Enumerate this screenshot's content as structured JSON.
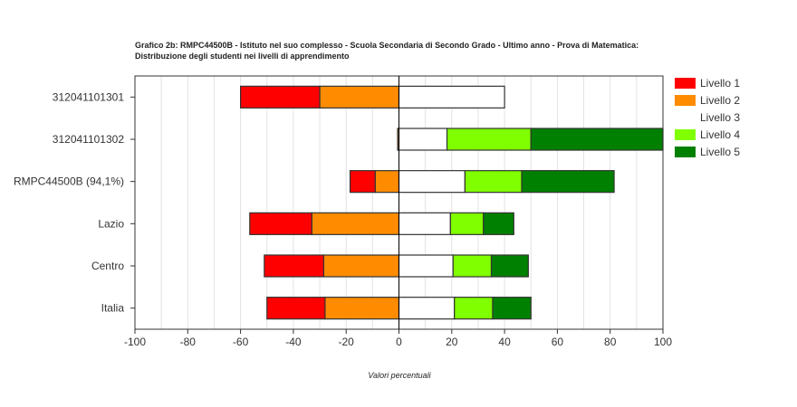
{
  "chart_data": {
    "type": "bar",
    "orientation": "horizontal",
    "stacked": "diverging",
    "title_line1": "Grafico 2b: RMPC44500B - Istituto nel suo complesso - Scuola Secondaria di Secondo Grado - Ultimo anno - Prova di Matematica:",
    "title_line2": "Distribuzione degli studenti nei livelli di apprendimento",
    "xlabel": "Valori percentuali",
    "xlim": [
      -100,
      100
    ],
    "xticks": [
      -100,
      -80,
      -60,
      -40,
      -20,
      0,
      20,
      40,
      60,
      80,
      100
    ],
    "grid": true,
    "legend_position": "right",
    "categories": [
      "312041101301",
      "312041101302",
      "RMPC44500B (94,1%)",
      "Lazio",
      "Centro",
      "Italia"
    ],
    "series": [
      {
        "name": "Livello 1",
        "color": "#ff0000",
        "values": [
          30,
          0,
          9.5,
          23.5,
          22.5,
          22
        ]
      },
      {
        "name": "Livello 2",
        "color": "#ff8c00",
        "values": [
          30,
          0.5,
          9,
          33,
          28.5,
          28
        ]
      },
      {
        "name": "Livello 3",
        "color": "#ffffff",
        "values": [
          40,
          18.2,
          25,
          19.5,
          20.5,
          21
        ]
      },
      {
        "name": "Livello 4",
        "color": "#80ff00",
        "values": [
          0,
          31.8,
          21.5,
          12.5,
          14.5,
          14.5
        ]
      },
      {
        "name": "Livello 5",
        "color": "#008000",
        "values": [
          0,
          50,
          35,
          11.5,
          14,
          14.5
        ]
      }
    ]
  }
}
